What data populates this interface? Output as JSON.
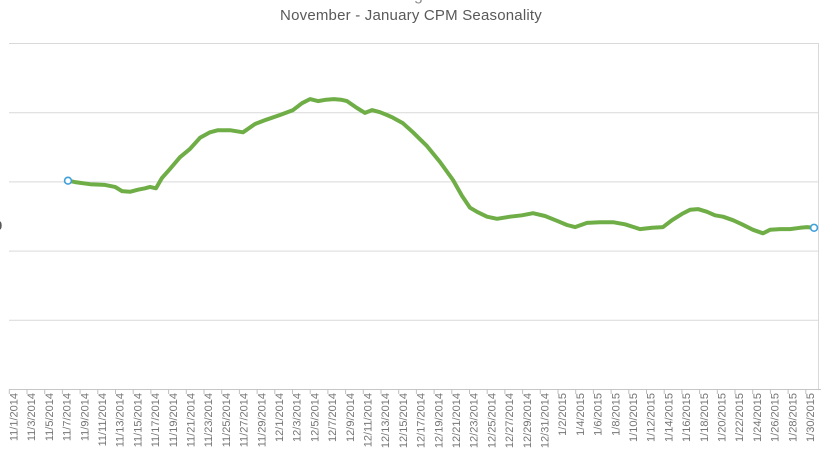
{
  "page": {
    "background": "#FFFFFF",
    "cropped_heading_fragment": "g",
    "cropped_left_axis_fragment": "0"
  },
  "chart_data": {
    "type": "line",
    "title": "November - January CPM Seasonality",
    "title_color": "#595959",
    "grid": true,
    "legend": false,
    "x_axis": {
      "first_date": "11/1/2014",
      "last_date": "1/30/2015",
      "label_step_days": 2,
      "label_rotation": "vertical, reads bottom-to-top",
      "label_color": "#757575",
      "tick_labels": [
        "11/1/2014",
        "11/3/2014",
        "11/5/2014",
        "11/7/2014",
        "11/9/2014",
        "11/11/2014",
        "11/13/2014",
        "11/15/2014",
        "11/17/2014",
        "11/19/2014",
        "11/21/2014",
        "11/23/2014",
        "11/25/2014",
        "11/27/2014",
        "11/29/2014",
        "12/1/2014",
        "12/3/2014",
        "12/5/2014",
        "12/7/2014",
        "12/9/2014",
        "12/11/2014",
        "12/13/2014",
        "12/15/2014",
        "12/17/2014",
        "12/19/2014",
        "12/21/2014",
        "12/23/2014",
        "12/25/2014",
        "12/27/2014",
        "12/29/2014",
        "12/31/2014",
        "1/2/2015",
        "1/4/2015",
        "1/6/2015",
        "1/8/2015",
        "1/10/2015",
        "1/12/2015",
        "1/14/2015",
        "1/16/2015",
        "1/18/2015",
        "1/20/2015",
        "1/22/2015",
        "1/24/2015",
        "1/26/2015",
        "1/28/2015",
        "1/30/2015"
      ]
    },
    "y_axis": {
      "tick_labels_visible": false,
      "note": "y-axis tick labels are cropped off the left edge of the screenshot",
      "gridline_values": [
        1,
        2,
        3,
        4,
        5
      ],
      "ylim": [
        0,
        5.6
      ],
      "gridline_color": "#D9D9D9",
      "axis_color": "#C6C6C6"
    },
    "series": [
      {
        "name": "CPM seasonality",
        "line_color": "#6FAD47",
        "marker_edge_color": "#41A0DC",
        "marker_fill": "#FFFFFF",
        "endpoints_marked": true,
        "x_unit": "days since 11/1/2014",
        "y_unit": "gridline units above x-axis (labels not visible)",
        "points": [
          [
            6.63,
            3.01
          ],
          [
            7.42,
            2.99
          ],
          [
            9.12,
            2.96
          ],
          [
            10.81,
            2.95
          ],
          [
            11.94,
            2.92
          ],
          [
            12.73,
            2.86
          ],
          [
            13.64,
            2.85
          ],
          [
            14.54,
            2.88
          ],
          [
            15.33,
            2.9
          ],
          [
            15.9,
            2.92
          ],
          [
            16.58,
            2.9
          ],
          [
            17.25,
            3.05
          ],
          [
            18.16,
            3.18
          ],
          [
            19.29,
            3.35
          ],
          [
            20.42,
            3.47
          ],
          [
            21.55,
            3.63
          ],
          [
            22.68,
            3.71
          ],
          [
            23.58,
            3.74
          ],
          [
            24.94,
            3.74
          ],
          [
            26.41,
            3.71
          ],
          [
            27.76,
            3.83
          ],
          [
            29.01,
            3.89
          ],
          [
            30.59,
            3.96
          ],
          [
            32.06,
            4.03
          ],
          [
            33.07,
            4.13
          ],
          [
            33.98,
            4.19
          ],
          [
            34.88,
            4.16
          ],
          [
            35.79,
            4.18
          ],
          [
            36.69,
            4.19
          ],
          [
            37.48,
            4.18
          ],
          [
            38.16,
            4.16
          ],
          [
            39.29,
            4.06
          ],
          [
            40.19,
            3.99
          ],
          [
            40.98,
            4.03
          ],
          [
            41.89,
            4.0
          ],
          [
            42.68,
            3.96
          ],
          [
            43.36,
            3.92
          ],
          [
            44.49,
            3.84
          ],
          [
            45.62,
            3.71
          ],
          [
            47.2,
            3.51
          ],
          [
            48.67,
            3.28
          ],
          [
            50.14,
            3.02
          ],
          [
            51.15,
            2.79
          ],
          [
            52.06,
            2.62
          ],
          [
            52.85,
            2.56
          ],
          [
            53.98,
            2.49
          ],
          [
            55.11,
            2.46
          ],
          [
            56.58,
            2.49
          ],
          [
            57.93,
            2.51
          ],
          [
            59.18,
            2.54
          ],
          [
            60.53,
            2.5
          ],
          [
            61.89,
            2.43
          ],
          [
            63.02,
            2.37
          ],
          [
            63.92,
            2.34
          ],
          [
            65.28,
            2.4
          ],
          [
            66.75,
            2.41
          ],
          [
            68.21,
            2.41
          ],
          [
            69.57,
            2.38
          ],
          [
            71.26,
            2.31
          ],
          [
            72.62,
            2.33
          ],
          [
            73.86,
            2.34
          ],
          [
            74.88,
            2.44
          ],
          [
            76.01,
            2.53
          ],
          [
            76.92,
            2.59
          ],
          [
            77.82,
            2.6
          ],
          [
            78.84,
            2.56
          ],
          [
            79.74,
            2.51
          ],
          [
            80.64,
            2.49
          ],
          [
            81.77,
            2.44
          ],
          [
            82.79,
            2.38
          ],
          [
            84.03,
            2.3
          ],
          [
            85.16,
            2.25
          ],
          [
            85.96,
            2.3
          ],
          [
            87.08,
            2.31
          ],
          [
            88.21,
            2.31
          ],
          [
            89.34,
            2.33
          ],
          [
            90.13,
            2.34
          ],
          [
            90.93,
            2.33
          ]
        ]
      }
    ]
  }
}
